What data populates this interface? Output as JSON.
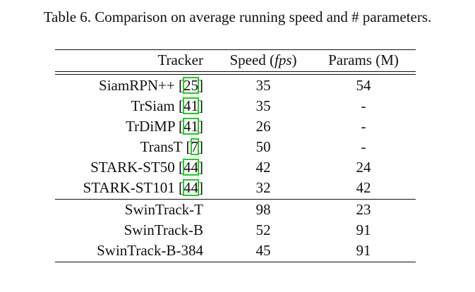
{
  "caption": "Table 6. Comparison on average running speed and # parameters.",
  "table": {
    "headers": {
      "tracker": "Tracker",
      "speed_main": "Speed (",
      "speed_unit": "fps",
      "speed_close": ")",
      "params": "Params (M)"
    },
    "group1": [
      {
        "name": "SiamRPN++",
        "cite": "25",
        "speed": "35",
        "params": "54"
      },
      {
        "name": "TrSiam",
        "cite": "41",
        "speed": "35",
        "params": "-"
      },
      {
        "name": "TrDiMP",
        "cite": "41",
        "speed": "26",
        "params": "-"
      },
      {
        "name": "TransT",
        "cite": "7",
        "speed": "50",
        "params": "-"
      },
      {
        "name": "STARK-ST50",
        "cite": "44",
        "speed": "42",
        "params": "24"
      },
      {
        "name": "STARK-ST101",
        "cite": "44",
        "speed": "32",
        "params": "42"
      }
    ],
    "group2": [
      {
        "name": "SwinTrack-T",
        "speed": "98",
        "params": "23"
      },
      {
        "name": "SwinTrack-B",
        "speed": "52",
        "params": "91"
      },
      {
        "name": "SwinTrack-B-384",
        "speed": "45",
        "params": "91"
      }
    ]
  },
  "colors": {
    "citation_highlight": "#22cc22",
    "text": "#111111"
  }
}
